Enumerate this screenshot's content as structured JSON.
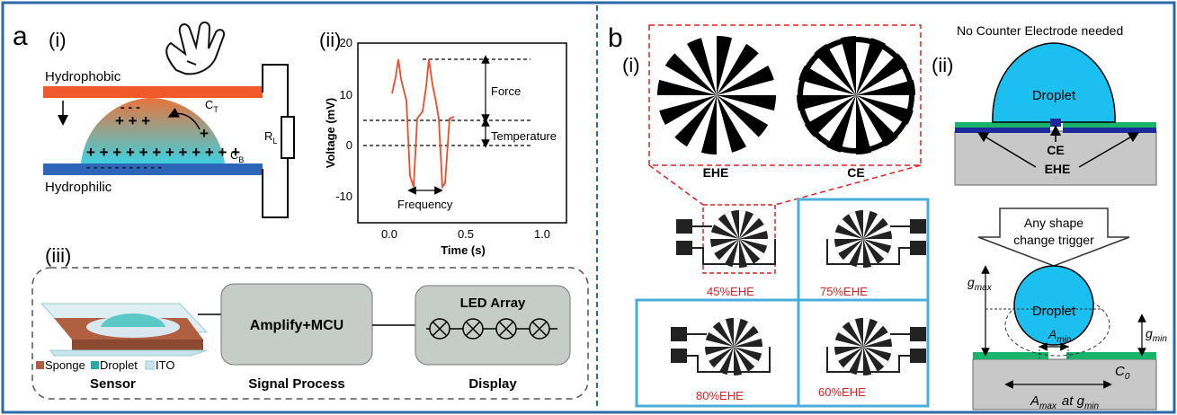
{
  "panel_a": {
    "label": "a",
    "sub_i": "(i)",
    "sub_ii": "(ii)",
    "sub_iii": "(iii)",
    "hydrophobic": "Hydrophobic",
    "hydrophilic": "Hydrophilic",
    "ct": "C",
    "ct_sub": "T",
    "cb": "C",
    "cb_sub": "B",
    "rl": "R",
    "rl_sub": "L",
    "charges_top_minus": "- - -",
    "charges_top_plus": "+ + +",
    "charge_plus": "+",
    "charges_row_plus": "+ + + + + + + + + + + +",
    "charges_bottom_minus": "- - - - - - - - - - -",
    "chart": {
      "ylabel": "Voltage (mV)",
      "xlabel": "Time (s)",
      "yticks": [
        "-10",
        "0",
        "10",
        "20"
      ],
      "xticks": [
        "0.0",
        "0.5",
        "1.0"
      ],
      "ann_force": "Force",
      "ann_temperature": "Temperature",
      "ann_frequency": "Frequency"
    },
    "blocks": {
      "signal_box": "Amplify+MCU",
      "led_array": "LED Array",
      "sensor_caption": "Sensor",
      "signal_caption": "Signal Process",
      "display_caption": "Display",
      "legend_sponge": "Sponge",
      "legend_droplet": "Droplet",
      "legend_ito": "ITO"
    },
    "colors": {
      "hydrophobic": "#f05a2a",
      "hydrophilic": "#2d66b8",
      "trace": "#f04a28"
    }
  },
  "panel_b": {
    "label": "b",
    "sub_i": "(i)",
    "sub_ii": "(ii)",
    "ehe": "EHE",
    "ce": "CE",
    "pct_45": "45%EHE",
    "pct_75": "75%EHE",
    "pct_80": "80%EHE",
    "pct_60": "60%EHE",
    "no_ce": "No Counter Electrode needed",
    "droplet": "Droplet",
    "ce_label": "CE",
    "ehe_label": "EHE",
    "arrow_text_1": "Any shape",
    "arrow_text_2": "change trigger",
    "droplet2": "Droplet",
    "g_max": "g",
    "g_max_sub": "max",
    "g_min": "g",
    "g_min_sub": "min",
    "a_min": "A",
    "a_min_sub": "min",
    "c0": "C",
    "c0_sub": "0",
    "a_max": "A",
    "a_max_sub": "max",
    "at_gmin": "at g",
    "at_gmin_sub": "min",
    "colors": {
      "droplet": "#1cc0f0",
      "box_border": "#4aaedc",
      "pct_text": "#e02020",
      "green": "#19b36b"
    }
  }
}
